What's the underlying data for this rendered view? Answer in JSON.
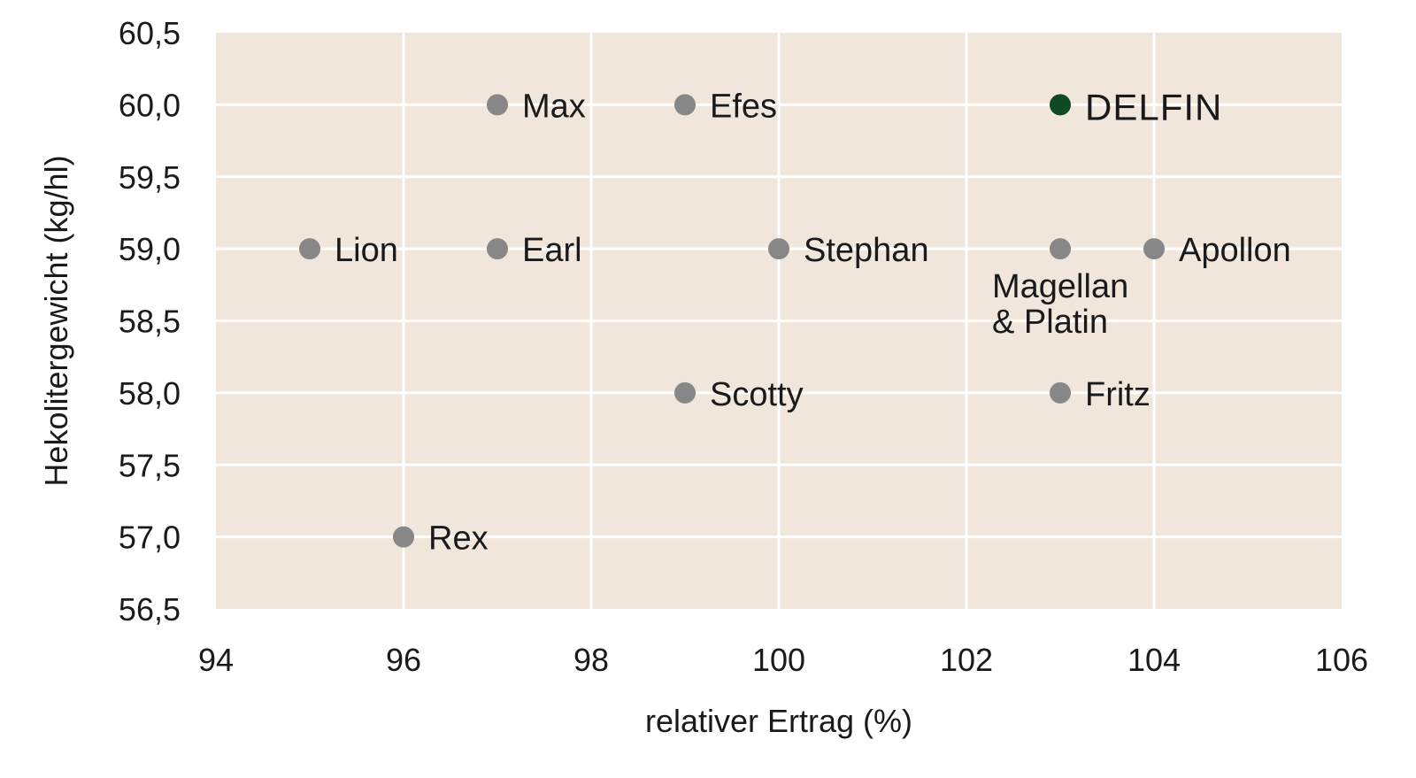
{
  "chart_data": {
    "type": "scatter",
    "xlabel": "relativer Ertrag (%)",
    "ylabel": "Hekolitergewicht (kg/hl)",
    "xlim": [
      94,
      106
    ],
    "ylim": [
      56.5,
      60.5
    ],
    "x_ticks": [
      94,
      96,
      98,
      100,
      102,
      104,
      106
    ],
    "y_ticks": [
      56.5,
      57.0,
      57.5,
      58.0,
      58.5,
      59.0,
      59.5,
      60.0,
      60.5
    ],
    "x_tick_labels": [
      "94",
      "96",
      "98",
      "100",
      "102",
      "104",
      "106"
    ],
    "y_tick_labels": [
      "56,5",
      "57,0",
      "57,5",
      "58,0",
      "58,5",
      "59,0",
      "59,5",
      "60,0",
      "60,5"
    ],
    "grid": true,
    "plot_background": "#f1e6dc",
    "point_color": "#878787",
    "highlight_color": "#0e4a23",
    "points": [
      {
        "label": "Max",
        "x": 97,
        "y": 60.0
      },
      {
        "label": "Efes",
        "x": 99,
        "y": 60.0
      },
      {
        "label": "DELFIN",
        "x": 103,
        "y": 60.0,
        "highlight": true
      },
      {
        "label": "Lion",
        "x": 95,
        "y": 59.0
      },
      {
        "label": "Earl",
        "x": 97,
        "y": 59.0
      },
      {
        "label": "Stephan",
        "x": 100,
        "y": 59.0
      },
      {
        "label": "Magellan & Platin",
        "label_lines": [
          "Magellan",
          "& Platin"
        ],
        "label_position": "below",
        "x": 103,
        "y": 59.0
      },
      {
        "label": "Apollon",
        "x": 104,
        "y": 59.0
      },
      {
        "label": "Scotty",
        "x": 99,
        "y": 58.0
      },
      {
        "label": "Fritz",
        "x": 103,
        "y": 58.0
      },
      {
        "label": "Rex",
        "x": 96,
        "y": 57.0
      }
    ]
  }
}
